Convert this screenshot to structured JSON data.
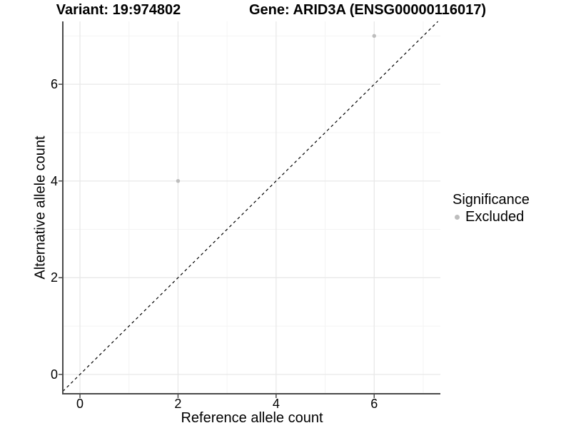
{
  "titles": {
    "variant": "Variant: 19:974802",
    "gene": "Gene: ARID3A (ENSG00000116017)"
  },
  "chart_data": {
    "type": "scatter",
    "title_left": "Variant: 19:974802",
    "title_right": "Gene: ARID3A (ENSG00000116017)",
    "xlabel": "Reference allele count",
    "ylabel": "Alternative allele count",
    "xlim": [
      -0.35,
      7.35
    ],
    "ylim": [
      -0.4,
      7.3
    ],
    "x_ticks": [
      0,
      2,
      4,
      6
    ],
    "y_ticks": [
      0,
      2,
      4,
      6
    ],
    "x_minor_ticks": [
      1,
      3,
      5,
      7
    ],
    "y_minor_ticks": [
      1,
      3,
      5,
      7
    ],
    "grid": true,
    "points": [
      {
        "x": 2,
        "y": 4,
        "significance": "Excluded"
      },
      {
        "x": 6,
        "y": 7,
        "significance": "Excluded"
      }
    ],
    "reference_line": {
      "kind": "identity",
      "equation": "y = x",
      "style": "dashed"
    },
    "legend": {
      "title": "Significance",
      "position": "right",
      "items": [
        {
          "label": "Excluded",
          "color": "#bdbdbd"
        }
      ]
    },
    "colors": {
      "point": "#bdbdbd",
      "grid_major": "#e8e8e8",
      "grid_minor": "#f4f4f4",
      "axis_line": "#4a4a4a",
      "tick_mark": "#4a4a4a",
      "dashed_line": "#000000",
      "background": "#ffffff"
    }
  }
}
